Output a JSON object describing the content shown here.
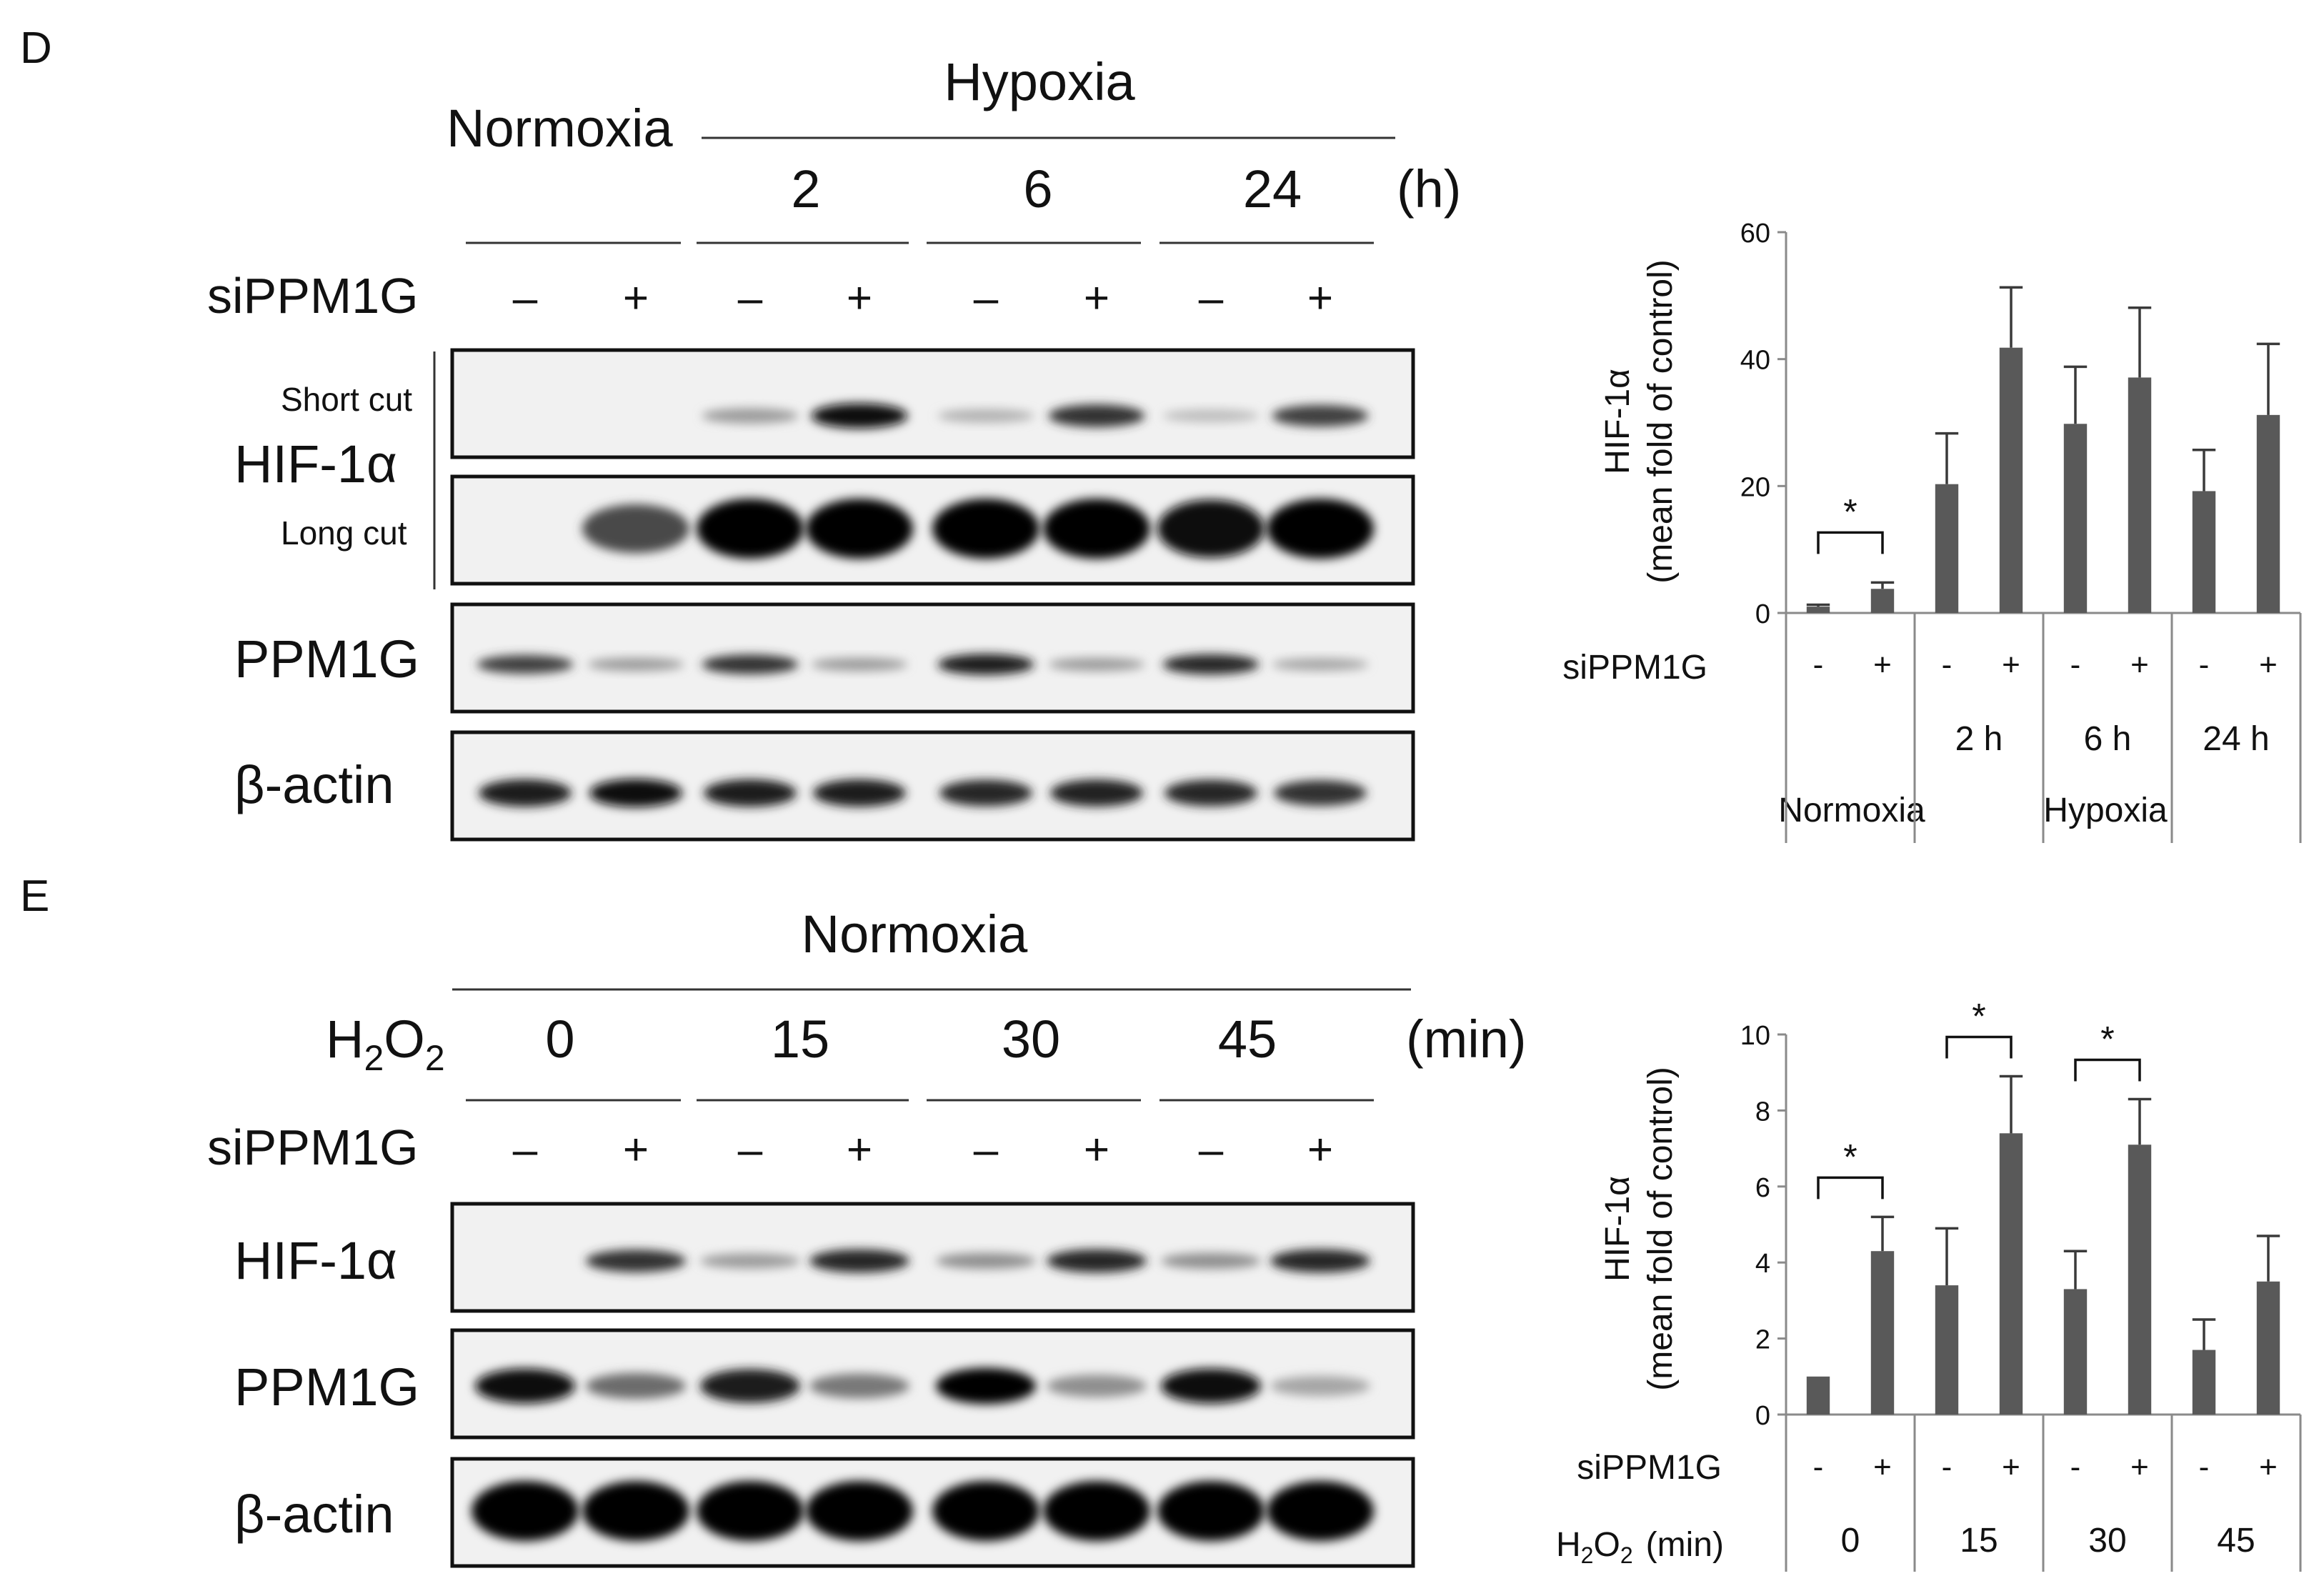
{
  "panel_d": {
    "letter": "D",
    "normoxia_label": "Normoxia",
    "hypoxia_label": "Hypoxia",
    "time_values": [
      "2",
      "6",
      "24"
    ],
    "time_unit": "(h)",
    "treatment_label": "siPPM1G",
    "lane_signs": [
      "–",
      "+",
      "–",
      "+",
      "–",
      "+",
      "–",
      "+"
    ],
    "blots": {
      "hif_label": "HIF-1α",
      "short_cut": "Short cut",
      "long_cut": "Long cut",
      "ppm1g": "PPM1G",
      "actin": "β-actin"
    },
    "band_intensity": {
      "hif_short": [
        0.0,
        0.0,
        0.35,
        0.95,
        0.25,
        0.8,
        0.2,
        0.75
      ],
      "hif_long": [
        0.0,
        0.7,
        1.0,
        1.0,
        1.0,
        1.0,
        0.95,
        1.0
      ],
      "ppm1g": [
        0.75,
        0.35,
        0.8,
        0.35,
        0.9,
        0.35,
        0.85,
        0.3
      ],
      "actin": [
        0.9,
        0.95,
        0.9,
        0.9,
        0.85,
        0.88,
        0.85,
        0.8
      ]
    }
  },
  "panel_e": {
    "letter": "E",
    "normoxia_label": "Normoxia",
    "h2o2_label": "H",
    "h2o2_sub": "2",
    "h2o2_o": "O",
    "time_values": [
      "0",
      "15",
      "30",
      "45"
    ],
    "time_unit": "(min)",
    "treatment_label": "siPPM1G",
    "lane_signs": [
      "–",
      "+",
      "–",
      "+",
      "–",
      "+",
      "–",
      "+"
    ],
    "blots": {
      "hif_label": "HIF-1α",
      "ppm1g": "PPM1G",
      "actin": "β-actin"
    },
    "band_intensity": {
      "hif": [
        0.0,
        0.8,
        0.35,
        0.85,
        0.4,
        0.85,
        0.4,
        0.85
      ],
      "ppm1g": [
        0.95,
        0.55,
        0.9,
        0.5,
        1.0,
        0.4,
        0.95,
        0.3
      ],
      "actin": [
        1.0,
        1.0,
        1.0,
        1.0,
        1.0,
        1.0,
        1.0,
        1.0
      ]
    }
  },
  "chart_data": [
    {
      "type": "bar",
      "ylabel_line1": "HIF-1α",
      "ylabel_line2": "(mean fold of control)",
      "ylim": [
        0,
        60
      ],
      "yticks": [
        0,
        20,
        40,
        60
      ],
      "sign_row_label": "siPPM1G",
      "signs": [
        "-",
        "+",
        "-",
        "+",
        "-",
        "+",
        "-",
        "+"
      ],
      "values": [
        1,
        3.8,
        20.3,
        41.8,
        29.8,
        37.1,
        19.2,
        31.2
      ],
      "errors": [
        0.3,
        1.0,
        8.0,
        9.5,
        9.0,
        11.0,
        6.5,
        11.2
      ],
      "group_labels": [
        "",
        "2 h",
        "6 h",
        "24 h"
      ],
      "condition_labels": [
        "Normoxia",
        "Hypoxia"
      ],
      "significance": [
        {
          "pair": [
            0,
            1
          ],
          "label": "*"
        }
      ]
    },
    {
      "type": "bar",
      "ylabel_line1": "HIF-1α",
      "ylabel_line2": "(mean fold of control)",
      "ylim": [
        0,
        10
      ],
      "yticks": [
        0,
        2,
        4,
        6,
        8,
        10
      ],
      "sign_row_label": "siPPM1G",
      "signs": [
        "-",
        "+",
        "-",
        "+",
        "-",
        "+",
        "-",
        "+"
      ],
      "values": [
        1.0,
        4.3,
        3.4,
        7.4,
        3.3,
        7.1,
        1.7,
        3.5
      ],
      "errors": [
        0.0,
        0.9,
        1.5,
        1.5,
        1.0,
        1.2,
        0.8,
        1.2
      ],
      "x_row_label": "H",
      "x_row_sub": "2",
      "x_row_o": "O",
      "x_row_unit": "(min)",
      "group_labels": [
        "0",
        "15",
        "30",
        "45"
      ],
      "significance": [
        {
          "pair": [
            0,
            1
          ],
          "label": "*"
        },
        {
          "pair": [
            2,
            3
          ],
          "label": "*"
        },
        {
          "pair": [
            4,
            5
          ],
          "label": "*"
        }
      ]
    }
  ]
}
